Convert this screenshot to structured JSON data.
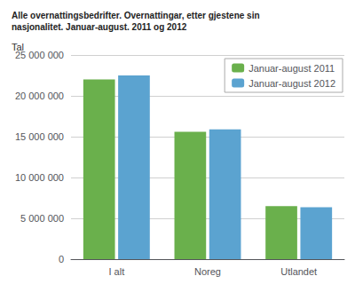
{
  "chart_data": {
    "type": "bar",
    "title": "Alle overnattingsbedrifter. Overnattingar, etter gjestene sin\nnasjonalitet. Januar-august. 2011 og 2012",
    "ylabel": "Tal",
    "categories": [
      "I alt",
      "Noreg",
      "Utlandet"
    ],
    "series": [
      {
        "name": "Januar-august 2011",
        "color": "#6ab04c",
        "values": [
          22000000,
          15600000,
          6500000
        ]
      },
      {
        "name": "Januar-august 2012",
        "color": "#5ba3d0",
        "values": [
          22500000,
          15900000,
          6350000
        ]
      }
    ],
    "ylim": [
      0,
      25000000
    ],
    "yticks": [
      0,
      {
        "value": 5000000,
        "label": "5 000 000"
      },
      {
        "value": 10000000,
        "label": "10 000 000"
      },
      {
        "value": 15000000,
        "label": "15 000 000"
      },
      {
        "value": 20000000,
        "label": "20 000 000"
      },
      {
        "value": 25000000,
        "label": "25 000 000"
      }
    ],
    "grid": true,
    "legend": "upper right"
  }
}
